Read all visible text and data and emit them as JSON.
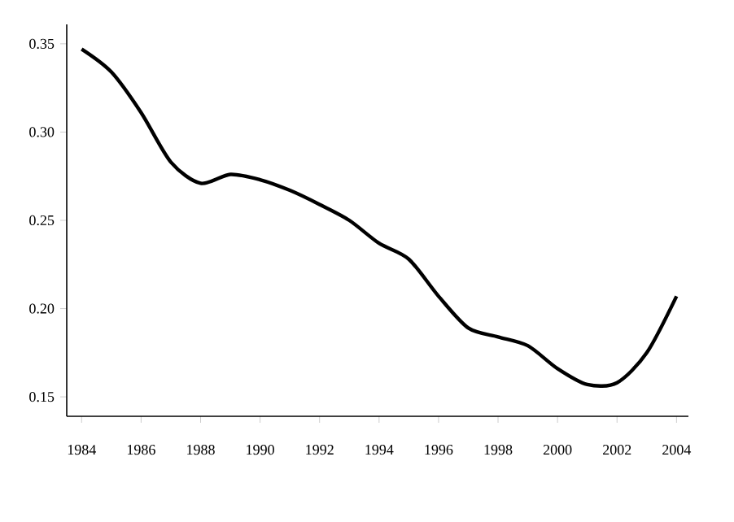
{
  "chart_data": {
    "type": "line",
    "color": "#000000",
    "x": [
      1984,
      1985,
      1986,
      1987,
      1988,
      1989,
      1990,
      1991,
      1992,
      1993,
      1994,
      1995,
      1996,
      1997,
      1998,
      1999,
      2000,
      2001,
      2002,
      2003,
      2004
    ],
    "values": [
      0.347,
      0.334,
      0.311,
      0.283,
      0.271,
      0.276,
      0.273,
      0.267,
      0.259,
      0.25,
      0.237,
      0.228,
      0.207,
      0.189,
      0.184,
      0.179,
      0.166,
      0.157,
      0.158,
      0.175,
      0.207
    ],
    "xlim": [
      1983.5,
      2004.4
    ],
    "ylim": [
      0.139,
      0.361
    ],
    "xticks": [
      1984,
      1986,
      1988,
      1990,
      1992,
      1994,
      1996,
      1998,
      2000,
      2002,
      2004
    ],
    "yticks": [
      {
        "value": 0.15,
        "label": "0.15"
      },
      {
        "value": 0.2,
        "label": "0.20"
      },
      {
        "value": 0.25,
        "label": "0.25"
      },
      {
        "value": 0.3,
        "label": "0.30"
      },
      {
        "value": 0.35,
        "label": "0.35"
      }
    ]
  }
}
